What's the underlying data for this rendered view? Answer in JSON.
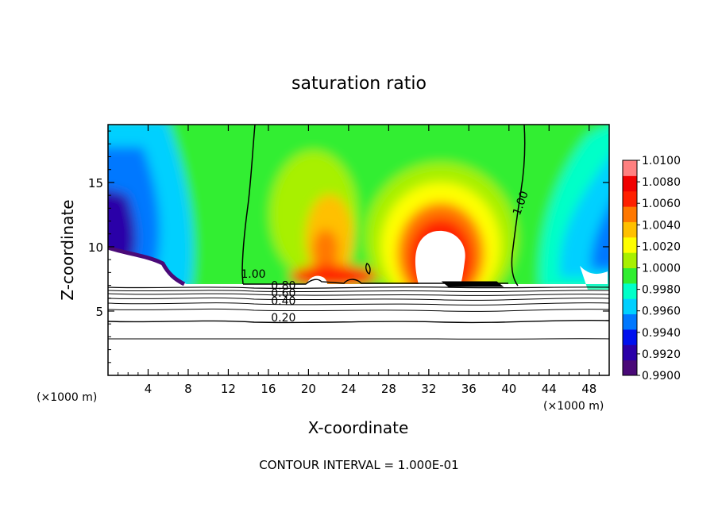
{
  "chart_data": {
    "type": "heatmap",
    "title": "saturation ratio",
    "xlabel": "X-coordinate",
    "ylabel": "Z-coordinate",
    "x_unit": "(×1000 m)",
    "xlim": [
      0,
      50
    ],
    "ylim": [
      0,
      19.5
    ],
    "x_ticks": [
      4,
      8,
      12,
      16,
      20,
      24,
      28,
      32,
      36,
      40,
      44,
      48
    ],
    "y_ticks": [
      5,
      10,
      15
    ],
    "footer": "CONTOUR INTERVAL = 1.000E-01",
    "colorbar": {
      "min": 0.99,
      "max": 1.01,
      "labels": [
        "1.0100",
        "1.0080",
        "1.0060",
        "1.0040",
        "1.0020",
        "1.0000",
        "0.9980",
        "0.9960",
        "0.9940",
        "0.9920",
        "0.9900"
      ],
      "colors": [
        "#4a0a78",
        "#2a00a8",
        "#0010ee",
        "#0078ff",
        "#00d0ff",
        "#00ffc8",
        "#30ee30",
        "#a8f000",
        "#ffff00",
        "#ffc000",
        "#ff7800",
        "#ff2000",
        "#f00000",
        "#ff8080"
      ]
    },
    "contour_labels": [
      {
        "text": "1.00",
        "x": 14.5,
        "z": 7.6
      },
      {
        "text": "0.80",
        "x": 17.5,
        "z": 6.7
      },
      {
        "text": "0.60",
        "x": 17.5,
        "z": 6.1
      },
      {
        "text": "0.40",
        "x": 17.5,
        "z": 5.5
      },
      {
        "text": "0.20",
        "x": 17.5,
        "z": 4.2
      },
      {
        "text": "1.00",
        "x": 41.5,
        "z": 13.3
      }
    ]
  }
}
